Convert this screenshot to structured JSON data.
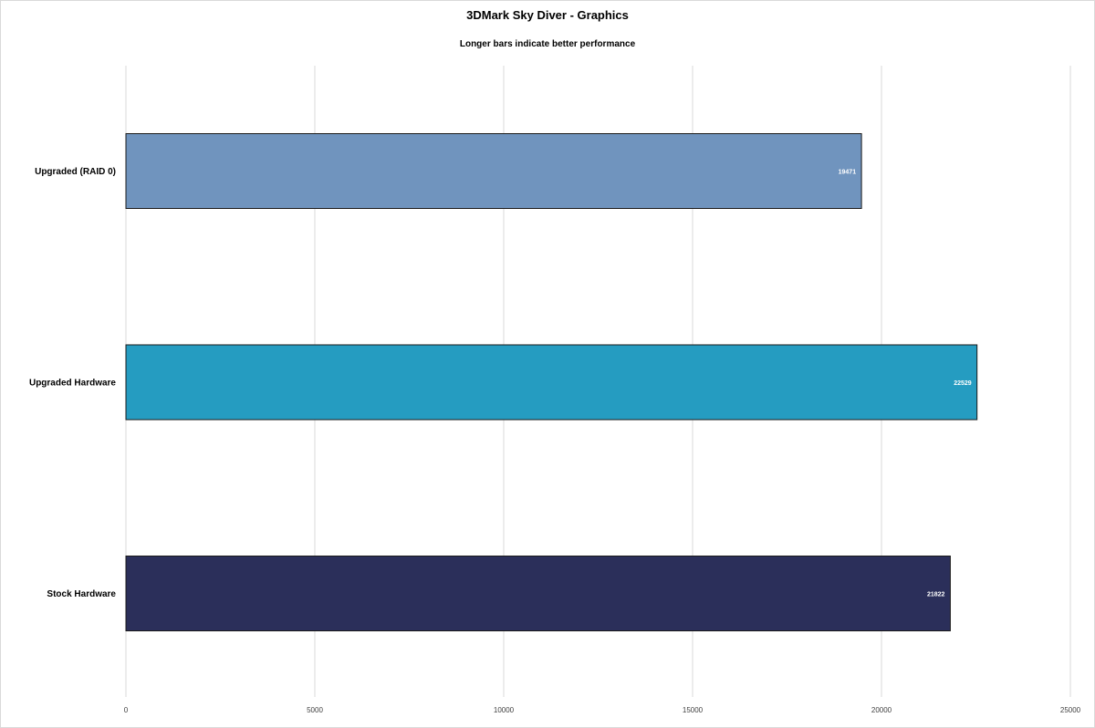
{
  "chart_data": {
    "type": "bar",
    "orientation": "horizontal",
    "title": "3DMark Sky Diver - Graphics",
    "subtitle": "Longer bars indicate better performance",
    "xlabel": "",
    "ylabel": "",
    "categories": [
      "Upgraded (RAID 0)",
      "Upgraded Hardware",
      "Stock Hardware"
    ],
    "values": [
      19471,
      22529,
      21822
    ],
    "colors": [
      "#7094be",
      "#259cc1",
      "#2b2f5a"
    ],
    "bar_border_color": "#1a1a1a",
    "xlim": [
      0,
      25000
    ],
    "xticks": [
      0,
      5000,
      10000,
      15000,
      20000,
      25000
    ],
    "grid": true,
    "grid_color": "#d9d9d9",
    "legend": false,
    "data_labels": true
  }
}
